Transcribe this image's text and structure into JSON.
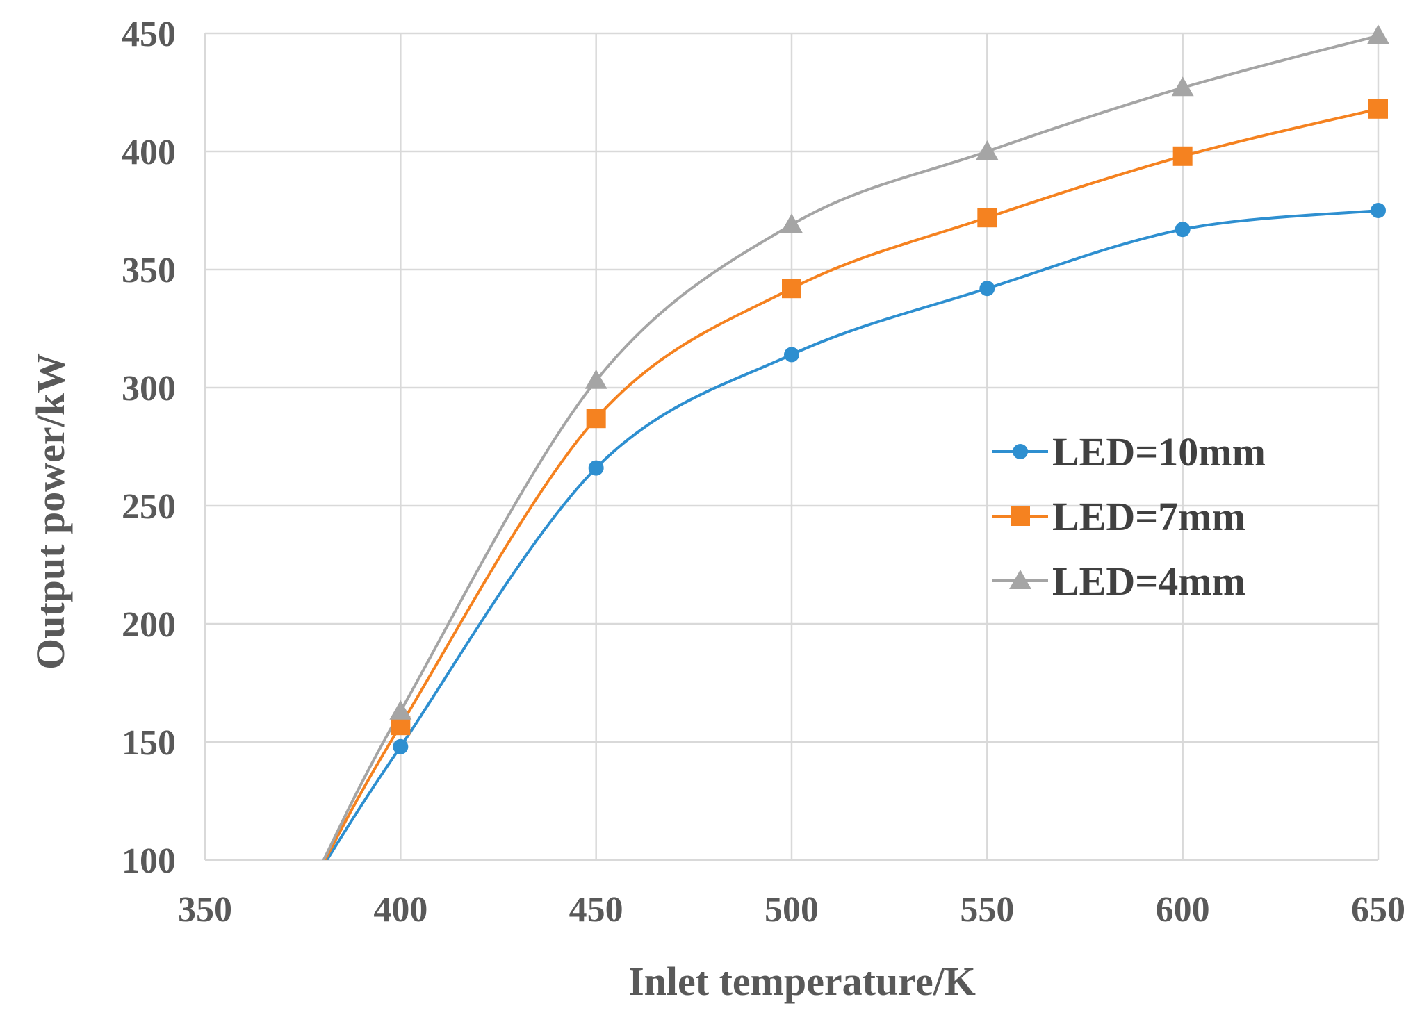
{
  "chart_data": {
    "type": "line",
    "title": "",
    "xlabel": "Inlet temperature/K",
    "ylabel": "Output power/kW",
    "xlim": [
      350,
      650
    ],
    "ylim": [
      100,
      450
    ],
    "xticks": [
      350,
      400,
      450,
      500,
      550,
      600,
      650
    ],
    "yticks": [
      100,
      150,
      200,
      250,
      300,
      350,
      400,
      450
    ],
    "grid": true,
    "legend_position": "right",
    "series": [
      {
        "name": "LED=10mm",
        "marker": "circle",
        "color": "#2E8FD0",
        "x": [
          380,
          400,
          450,
          500,
          550,
          600,
          650
        ],
        "y": [
          97,
          148,
          266,
          314,
          342,
          367,
          375
        ]
      },
      {
        "name": "LED=7mm",
        "marker": "square",
        "color": "#F58220",
        "x": [
          380,
          400,
          450,
          500,
          550,
          600,
          650
        ],
        "y": [
          98,
          157,
          287,
          342,
          372,
          398,
          418
        ]
      },
      {
        "name": "LED=4mm",
        "marker": "triangle",
        "color": "#A5A5A5",
        "x": [
          380,
          400,
          450,
          500,
          550,
          600,
          650
        ],
        "y": [
          99,
          163,
          303,
          369,
          400,
          427,
          449
        ]
      }
    ]
  }
}
